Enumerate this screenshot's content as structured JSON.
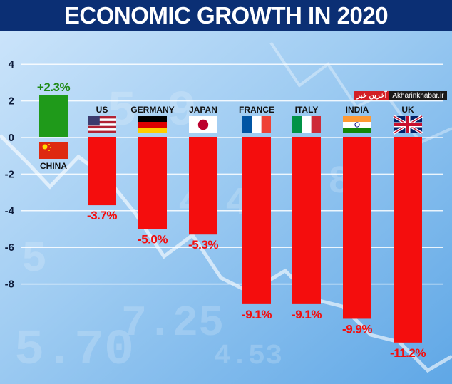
{
  "title": "ECONOMIC GROWTH IN 2020",
  "watermark": {
    "logo": "آخرین خبر",
    "site": "Akharinkhabar.ir"
  },
  "colors": {
    "positive": "#1f9a1a",
    "negative": "#f40d0d",
    "title_bg": "#0b2f74",
    "negative_label": "#f40d0d",
    "positive_label": "#1f8a16"
  },
  "chart_data": {
    "type": "bar",
    "title": "ECONOMIC GROWTH IN 2020",
    "xlabel": "",
    "ylabel": "",
    "ylim": [
      -12,
      4
    ],
    "yticks": [
      4,
      2,
      0,
      -2,
      -4,
      -6,
      -8
    ],
    "ytick_labels": [
      "4",
      "2",
      "0",
      "-2",
      "-4",
      "-6",
      "-8"
    ],
    "grid": true,
    "categories": [
      "CHINA",
      "US",
      "GERMANY",
      "JAPAN",
      "FRANCE",
      "ITALY",
      "INDIA",
      "UK"
    ],
    "values": [
      2.3,
      -3.7,
      -5.0,
      -5.3,
      -9.1,
      -9.1,
      -9.9,
      -11.2
    ],
    "data_labels": [
      "+2.3%",
      "-3.7%",
      "-5.0%",
      "-5.3%",
      "-9.1%",
      "-9.1%",
      "-9.9%",
      "-11.2%"
    ],
    "flags": [
      "china-flag",
      "us-flag",
      "germany-flag",
      "japan-flag",
      "france-flag",
      "italy-flag",
      "india-flag",
      "uk-flag"
    ]
  }
}
